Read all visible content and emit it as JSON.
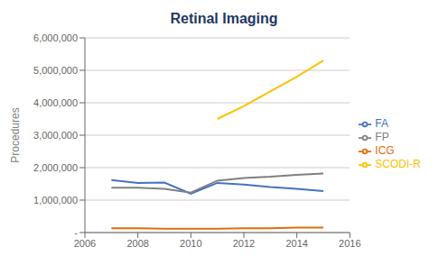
{
  "chart_data": {
    "type": "line",
    "title": "Retinal Imaging",
    "title_color": "#1f3864",
    "ylabel": "Procedures",
    "x": [
      2007,
      2008,
      2009,
      2010,
      2011,
      2012,
      2013,
      2014,
      2015
    ],
    "xlim": [
      2006,
      2016
    ],
    "xticks": [
      2006,
      2008,
      2010,
      2012,
      2014,
      2016
    ],
    "ylim": [
      0,
      6000000
    ],
    "yticks": [
      {
        "value": 0,
        "label": "-"
      },
      {
        "value": 1000000,
        "label": "1,000,000"
      },
      {
        "value": 2000000,
        "label": "2,000,000"
      },
      {
        "value": 3000000,
        "label": "3,000,000"
      },
      {
        "value": 4000000,
        "label": "4,000,000"
      },
      {
        "value": 5000000,
        "label": "5,000,000"
      },
      {
        "value": 6000000,
        "label": "6,000,000"
      }
    ],
    "grid": true,
    "legend": "right",
    "series": [
      {
        "name": "FA",
        "color": "#4472c4",
        "values": [
          1620000,
          1530000,
          1540000,
          1200000,
          1530000,
          1480000,
          1400000,
          1350000,
          1280000
        ]
      },
      {
        "name": "ICG",
        "color": "#e36c09",
        "values": [
          130000,
          130000,
          120000,
          120000,
          120000,
          130000,
          130000,
          150000,
          150000
        ]
      },
      {
        "name": "FP",
        "color": "#808080",
        "values": [
          1380000,
          1380000,
          1350000,
          1230000,
          1600000,
          1680000,
          1720000,
          1780000,
          1820000
        ]
      },
      {
        "name": "SCODI-R",
        "color": "#ffc000",
        "values": [
          null,
          null,
          null,
          null,
          3500000,
          3900000,
          4350000,
          4800000,
          5300000
        ]
      }
    ]
  }
}
